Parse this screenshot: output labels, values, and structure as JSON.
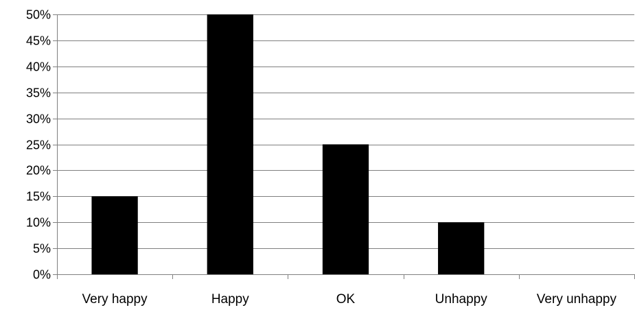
{
  "chart_data": {
    "type": "bar",
    "title": "",
    "xlabel": "",
    "ylabel": "",
    "categories": [
      "Very happy",
      "Happy",
      "OK",
      "Unhappy",
      "Very unhappy"
    ],
    "values": [
      15,
      50,
      25,
      10,
      0
    ],
    "ylim": [
      0,
      50
    ],
    "y_tick_step": 5,
    "y_tick_format": "percent",
    "grid": true,
    "legend": "none",
    "bar_color": "#000000",
    "grid_color": "#7f7f7f",
    "axis_color": "#7f7f7f"
  }
}
